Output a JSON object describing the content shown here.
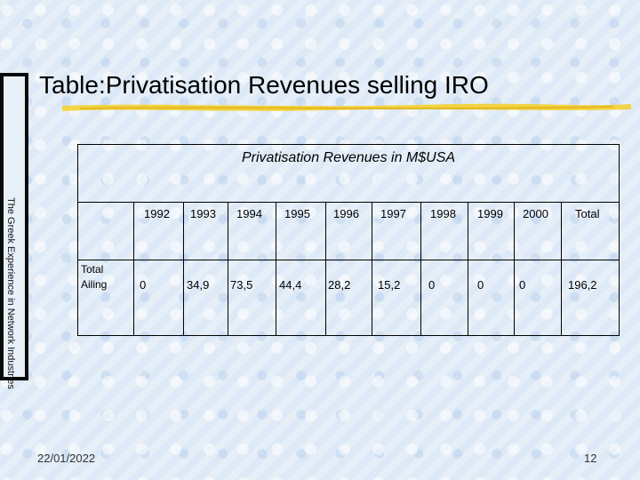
{
  "slide": {
    "title": "Table:Privatisation Revenues selling IRO",
    "side_label": "The Greek Experience in Network Industries",
    "date": "22/01/2022",
    "page_number": "12"
  },
  "table": {
    "caption": "Privatisation Revenues in M$USA",
    "columns": [
      "1992",
      "1993",
      "1994",
      "1995",
      "1996",
      "1997",
      "1998",
      "1999",
      "2000",
      "Total"
    ],
    "row_label": [
      "Total",
      "Ailing"
    ],
    "row_values": [
      "0",
      "34,9",
      "73,5",
      "44,4",
      "28,2",
      "15,2",
      "0",
      "0",
      "0",
      "196,2"
    ]
  },
  "colors": {
    "background": "#dde9f6",
    "sidebar": "#0a0a0a",
    "underline": "#f2d23a"
  }
}
